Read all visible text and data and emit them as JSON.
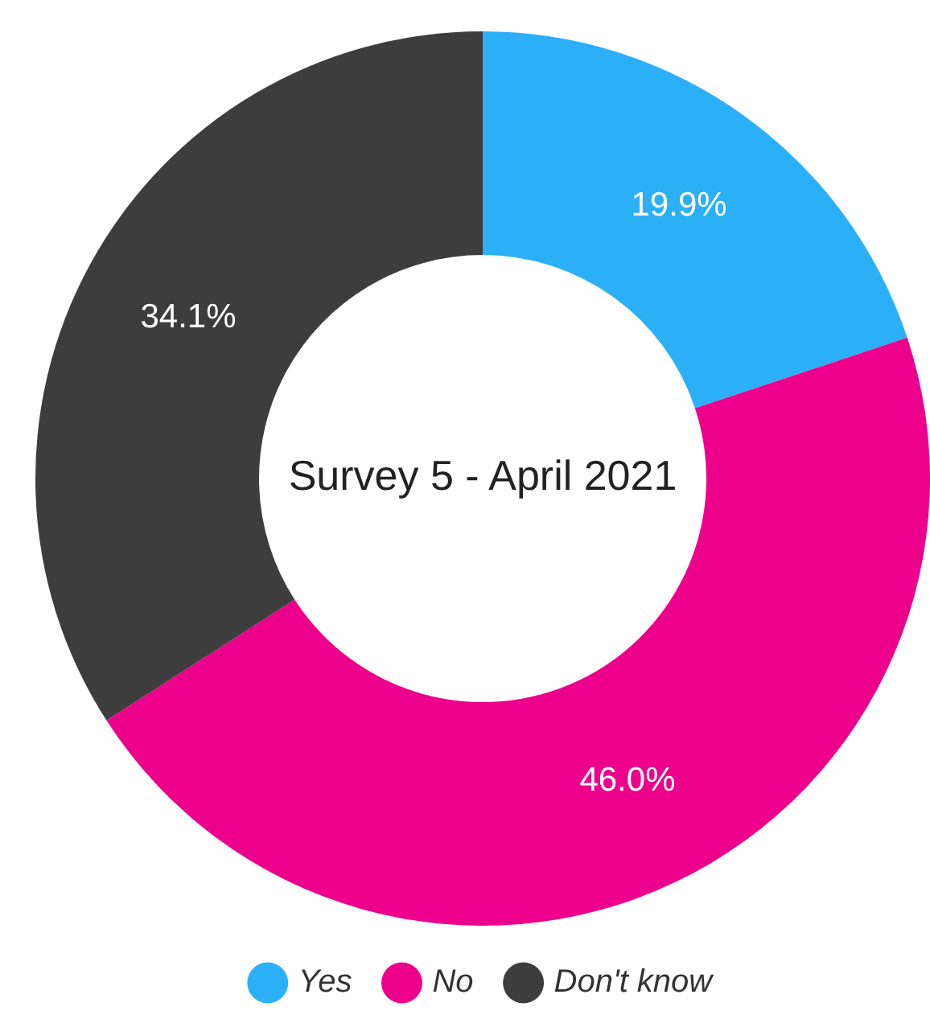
{
  "chart_data": {
    "type": "donut",
    "title": "Survey 5 - April 2021",
    "categories": [
      "Yes",
      "No",
      "Don't know"
    ],
    "values": [
      19.9,
      46.0,
      34.1
    ],
    "value_labels": [
      "19.9%",
      "46.0%",
      "34.1%"
    ],
    "colors": [
      "#2bb0f8",
      "#ec008c",
      "#3d3d3d"
    ],
    "legend": "bottom"
  }
}
